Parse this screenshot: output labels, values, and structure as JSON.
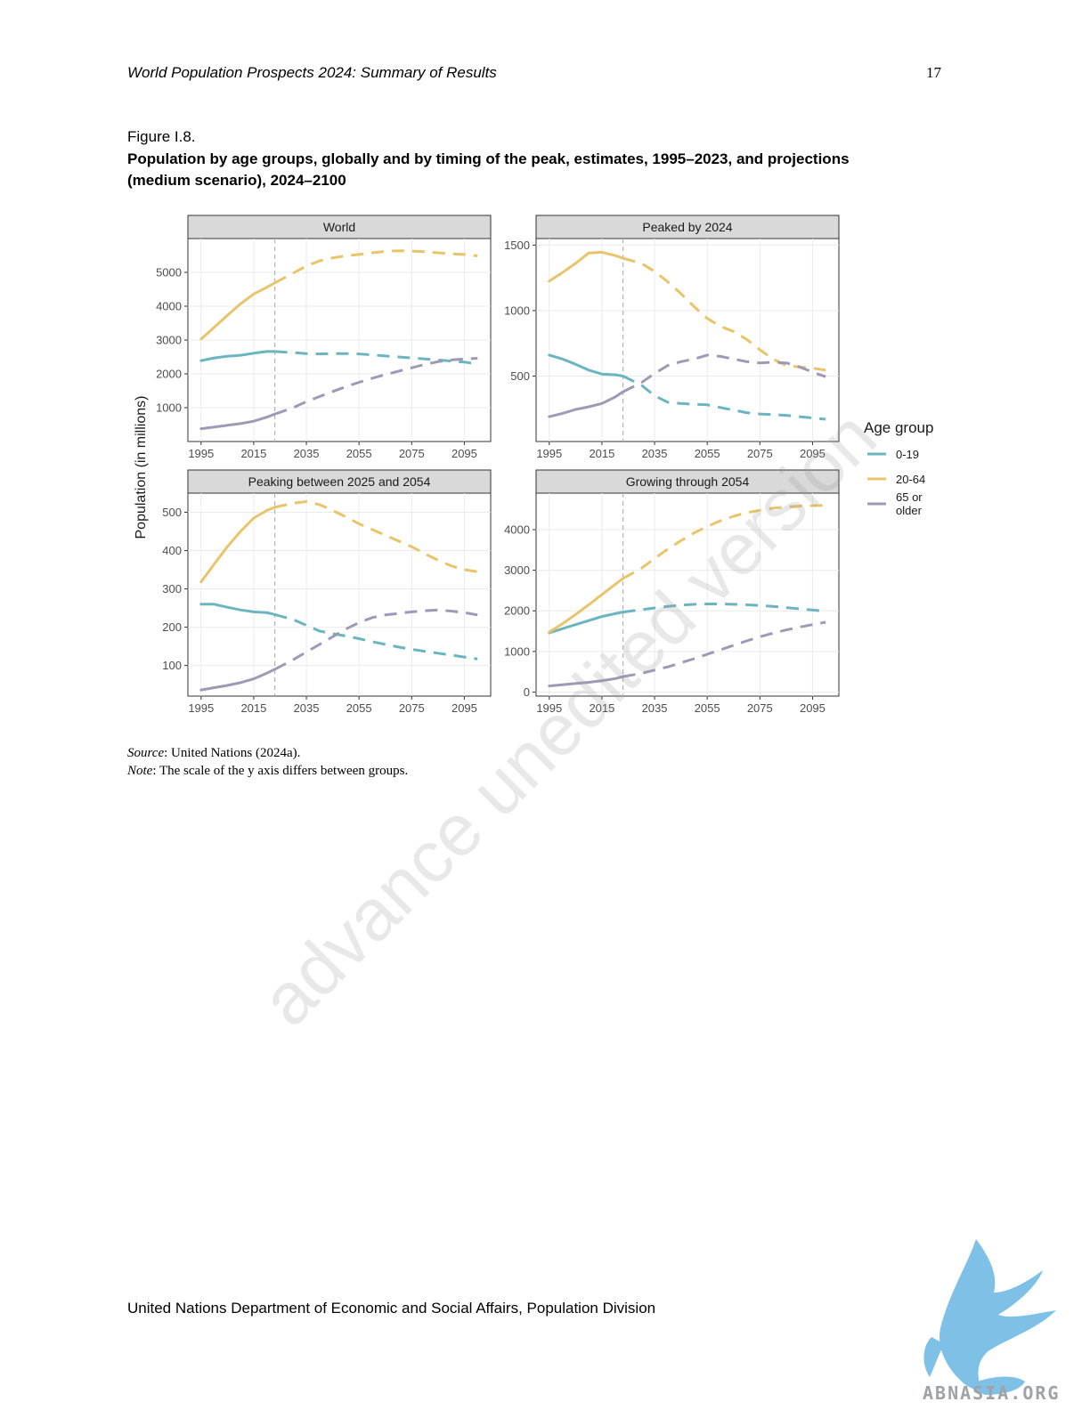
{
  "header": {
    "running_title": "World Population Prospects 2024: Summary of Results",
    "page_number": "17"
  },
  "figure": {
    "label": "Figure I.8.",
    "title": "Population by age groups, globally and by timing of the peak, estimates, 1995–2023, and projections (medium scenario), 2024–2100"
  },
  "notes": {
    "source_label": "Source",
    "source_text": ": United Nations (2024a).",
    "note_label": "Note",
    "note_text": ": The scale of the y axis differs between groups."
  },
  "footer": {
    "text": "United Nations Department of Economic and Social Affairs, Population Division"
  },
  "watermark": "advance unedited version",
  "logo_text": "ABNASIA.ORG",
  "colors": {
    "0-19": "#6bb5bf",
    "20-64": "#e8c46a",
    "65 or older": "#9e9ab5",
    "panel_strip": "#d9d9d9",
    "grid": "#ebebeb"
  },
  "chart_data": {
    "type": "line",
    "ylabel": "Population (in millions)",
    "legend_title": "Age group",
    "legend": [
      {
        "key": "0-19",
        "label": "0-19"
      },
      {
        "key": "20-64",
        "label": "20-64"
      },
      {
        "key": "65 or older",
        "label": "65 or older"
      }
    ],
    "estimate_end_year": 2023,
    "projection_start_year": 2024,
    "x_ticks": [
      1995,
      2015,
      2035,
      2055,
      2075,
      2095
    ],
    "xlim": [
      1990,
      2105
    ],
    "panels": [
      {
        "title": "World",
        "ylim": [
          0,
          6000
        ],
        "y_ticks": [
          1000,
          2000,
          3000,
          4000,
          5000
        ],
        "series": [
          {
            "name": "0-19",
            "x": [
              1995,
              2000,
              2005,
              2010,
              2015,
              2020,
              2023,
              2030,
              2035,
              2040,
              2045,
              2050,
              2055,
              2060,
              2065,
              2070,
              2075,
              2080,
              2085,
              2090,
              2095,
              2100
            ],
            "y": [
              2390,
              2470,
              2520,
              2550,
              2610,
              2660,
              2660,
              2630,
              2600,
              2590,
              2600,
              2600,
              2590,
              2560,
              2530,
              2500,
              2470,
              2440,
              2410,
              2380,
              2350,
              2290
            ]
          },
          {
            "name": "20-64",
            "x": [
              1995,
              2000,
              2005,
              2010,
              2015,
              2020,
              2023,
              2030,
              2035,
              2040,
              2045,
              2050,
              2055,
              2060,
              2065,
              2070,
              2075,
              2080,
              2085,
              2090,
              2095,
              2100
            ],
            "y": [
              3030,
              3380,
              3730,
              4070,
              4360,
              4560,
              4690,
              4980,
              5190,
              5340,
              5430,
              5490,
              5530,
              5580,
              5620,
              5640,
              5630,
              5610,
              5580,
              5550,
              5530,
              5490
            ]
          },
          {
            "name": "65 or older",
            "x": [
              1995,
              2000,
              2005,
              2010,
              2015,
              2020,
              2023,
              2030,
              2035,
              2040,
              2045,
              2050,
              2055,
              2060,
              2065,
              2070,
              2075,
              2080,
              2085,
              2090,
              2095,
              2100
            ],
            "y": [
              380,
              430,
              480,
              530,
              600,
              720,
              810,
              1000,
              1180,
              1330,
              1480,
              1620,
              1750,
              1870,
              1980,
              2080,
              2180,
              2280,
              2360,
              2410,
              2440,
              2460
            ]
          }
        ]
      },
      {
        "title": "Peaked by 2024",
        "ylim": [
          0,
          1550
        ],
        "y_ticks": [
          500,
          1000,
          1500
        ],
        "series": [
          {
            "name": "0-19",
            "x": [
              1995,
              2000,
              2005,
              2010,
              2015,
              2020,
              2023,
              2030,
              2035,
              2040,
              2045,
              2050,
              2055,
              2060,
              2065,
              2070,
              2075,
              2080,
              2085,
              2090,
              2095,
              2100
            ],
            "y": [
              660,
              630,
              590,
              545,
              515,
              510,
              500,
              430,
              350,
              300,
              290,
              285,
              280,
              260,
              240,
              220,
              210,
              205,
              200,
              190,
              180,
              170
            ]
          },
          {
            "name": "20-64",
            "x": [
              1995,
              2000,
              2005,
              2010,
              2015,
              2020,
              2023,
              2030,
              2035,
              2040,
              2045,
              2050,
              2055,
              2060,
              2065,
              2070,
              2075,
              2080,
              2085,
              2090,
              2095,
              2100
            ],
            "y": [
              1225,
              1290,
              1360,
              1440,
              1445,
              1420,
              1400,
              1360,
              1300,
              1220,
              1130,
              1030,
              940,
              880,
              840,
              780,
              700,
              630,
              580,
              570,
              560,
              545
            ]
          },
          {
            "name": "65 or older",
            "x": [
              1995,
              2000,
              2005,
              2010,
              2015,
              2020,
              2023,
              2030,
              2035,
              2040,
              2045,
              2050,
              2055,
              2060,
              2065,
              2070,
              2075,
              2080,
              2085,
              2090,
              2095,
              2100
            ],
            "y": [
              190,
              215,
              245,
              265,
              290,
              340,
              380,
              450,
              520,
              580,
              610,
              630,
              660,
              650,
              630,
              610,
              600,
              605,
              600,
              570,
              530,
              495
            ]
          }
        ]
      },
      {
        "title": "Peaking between 2025 and 2054",
        "ylim": [
          20,
          550
        ],
        "y_ticks": [
          100,
          200,
          300,
          400,
          500
        ],
        "series": [
          {
            "name": "0-19",
            "x": [
              1995,
              2000,
              2005,
              2010,
              2015,
              2020,
              2023,
              2030,
              2035,
              2040,
              2045,
              2050,
              2055,
              2060,
              2065,
              2070,
              2075,
              2080,
              2085,
              2090,
              2095,
              2100
            ],
            "y": [
              260,
              260,
              252,
              245,
              240,
              238,
              233,
              220,
              205,
              190,
              183,
              177,
              170,
              162,
              155,
              148,
              142,
              137,
              132,
              127,
              122,
              117
            ]
          },
          {
            "name": "20-64",
            "x": [
              1995,
              2000,
              2005,
              2010,
              2015,
              2020,
              2023,
              2030,
              2035,
              2040,
              2045,
              2050,
              2055,
              2060,
              2065,
              2070,
              2075,
              2080,
              2085,
              2090,
              2095,
              2100
            ],
            "y": [
              318,
              365,
              410,
              450,
              485,
              505,
              513,
              524,
              528,
              520,
              505,
              488,
              470,
              455,
              440,
              425,
              410,
              392,
              375,
              360,
              350,
              345
            ]
          },
          {
            "name": "65 or older",
            "x": [
              1995,
              2000,
              2005,
              2010,
              2015,
              2020,
              2023,
              2030,
              2035,
              2040,
              2045,
              2050,
              2055,
              2060,
              2065,
              2070,
              2075,
              2080,
              2085,
              2090,
              2095,
              2100
            ],
            "y": [
              36,
              42,
              48,
              55,
              65,
              80,
              90,
              115,
              135,
              155,
              175,
              195,
              212,
              225,
              232,
              236,
              240,
              243,
              245,
              242,
              238,
              232
            ]
          }
        ]
      },
      {
        "title": "Growing through 2054",
        "ylim": [
          -100,
          4900
        ],
        "y_ticks": [
          0,
          1000,
          2000,
          3000,
          4000
        ],
        "series": [
          {
            "name": "0-19",
            "x": [
              1995,
              2000,
              2005,
              2010,
              2015,
              2020,
              2023,
              2030,
              2035,
              2040,
              2045,
              2050,
              2055,
              2060,
              2065,
              2070,
              2075,
              2080,
              2085,
              2090,
              2095,
              2100
            ],
            "y": [
              1460,
              1560,
              1660,
              1760,
              1860,
              1930,
              1970,
              2030,
              2070,
              2110,
              2140,
              2160,
              2170,
              2170,
              2160,
              2150,
              2130,
              2110,
              2080,
              2050,
              2020,
              1990
            ]
          },
          {
            "name": "20-64",
            "x": [
              1995,
              2000,
              2005,
              2010,
              2015,
              2020,
              2023,
              2030,
              2035,
              2040,
              2045,
              2050,
              2055,
              2060,
              2065,
              2070,
              2075,
              2080,
              2085,
              2090,
              2095,
              2100
            ],
            "y": [
              1480,
              1680,
              1910,
              2150,
              2400,
              2650,
              2800,
              3050,
              3290,
              3520,
              3730,
              3920,
              4080,
              4220,
              4330,
              4420,
              4480,
              4530,
              4560,
              4580,
              4590,
              4600
            ]
          },
          {
            "name": "65 or older",
            "x": [
              1995,
              2000,
              2005,
              2010,
              2015,
              2020,
              2023,
              2030,
              2035,
              2040,
              2045,
              2050,
              2055,
              2060,
              2065,
              2070,
              2075,
              2080,
              2085,
              2090,
              2095,
              2100
            ],
            "y": [
              150,
              180,
              210,
              240,
              280,
              330,
              380,
              460,
              540,
              620,
              720,
              820,
              930,
              1040,
              1150,
              1260,
              1360,
              1450,
              1530,
              1600,
              1660,
              1720
            ]
          }
        ]
      }
    ]
  }
}
